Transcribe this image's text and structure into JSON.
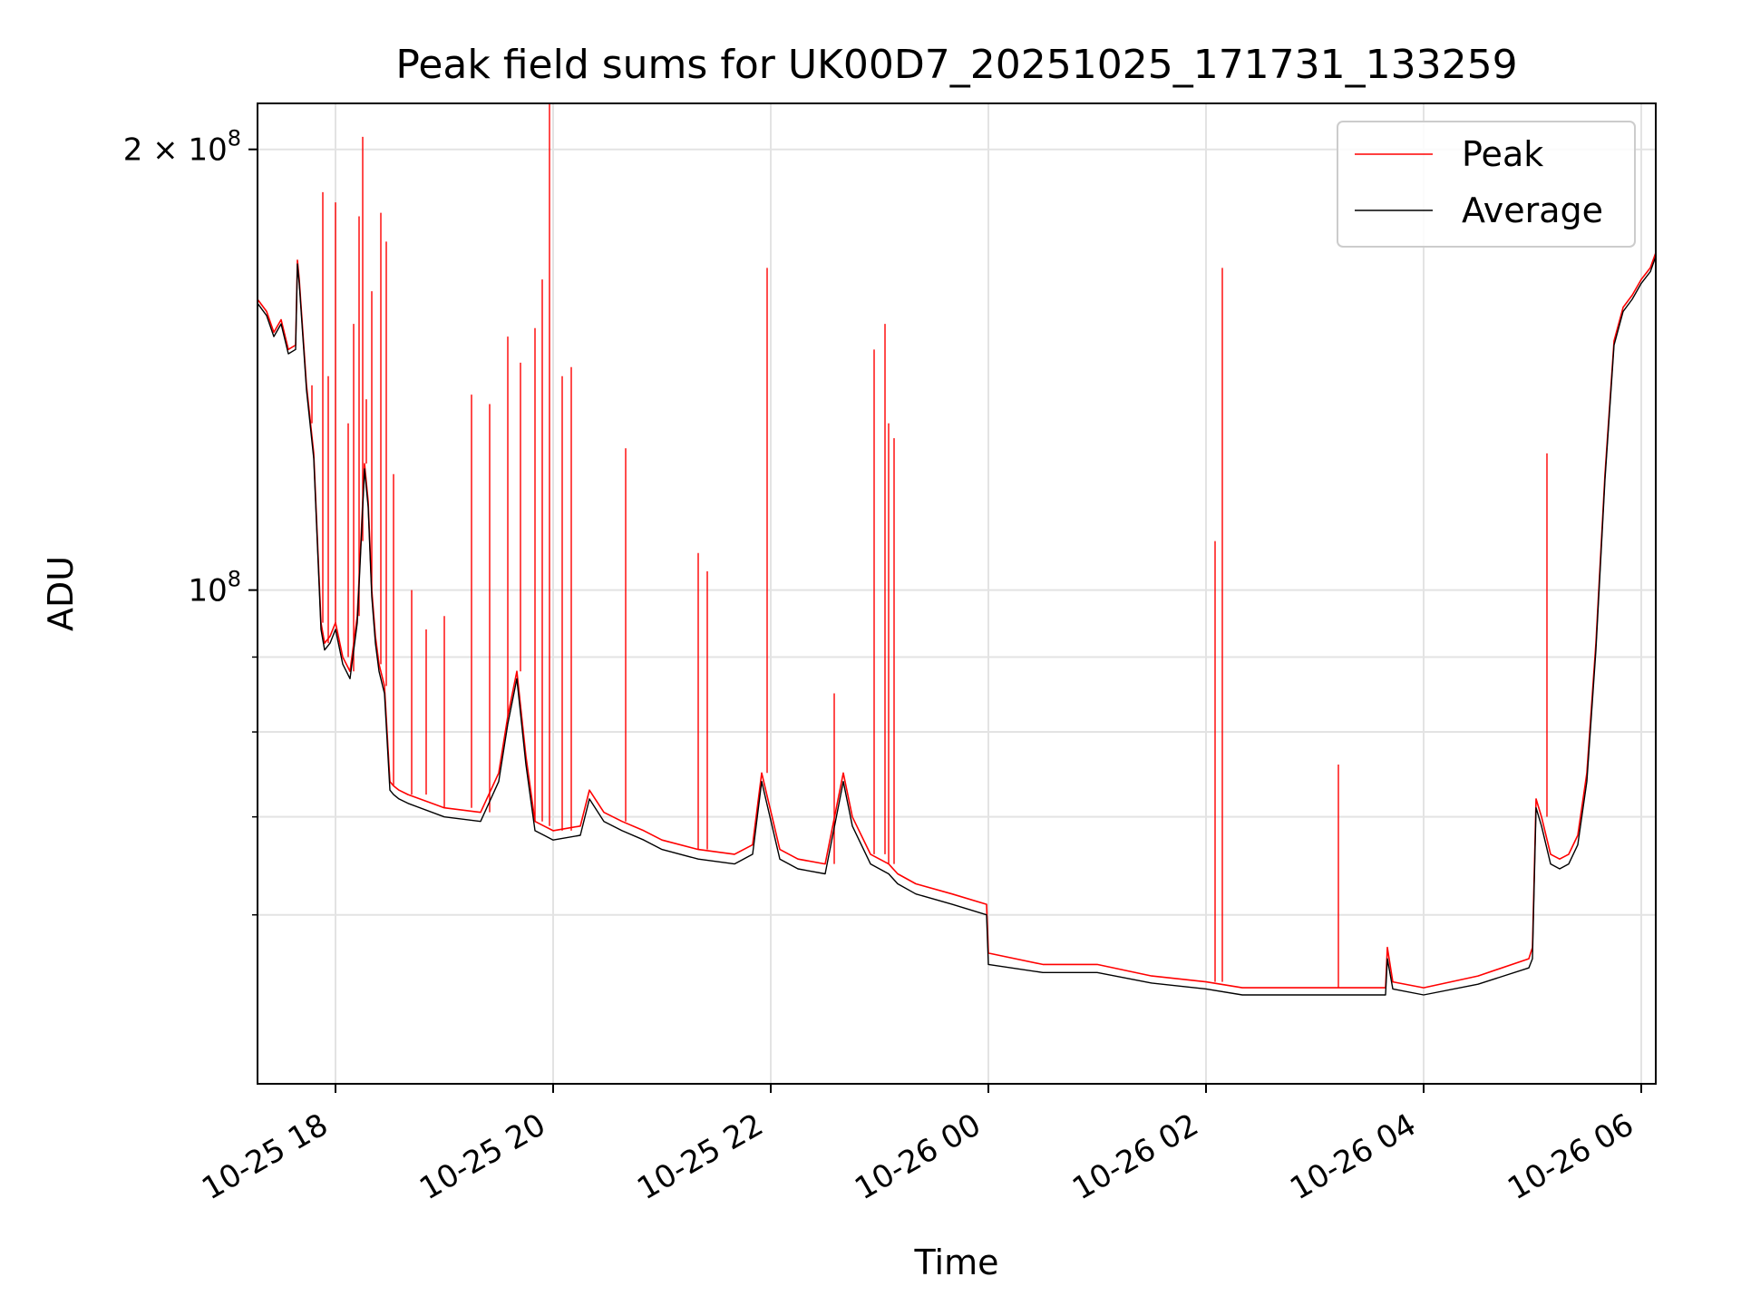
{
  "chart_data": {
    "type": "line",
    "title": "Peak field sums for UK00D7_20251025_171731_133259",
    "xlabel": "Time",
    "ylabel": "ADU",
    "y_scale": "log",
    "ylim": [
      46000000,
      215000000
    ],
    "xlim": [
      "2025-10-25 17:17",
      "2025-10-26 06:08"
    ],
    "grid": true,
    "legend_position": "top-right",
    "x_ticks": [
      {
        "t": "2025-10-25 18:00",
        "label": "10-25 18"
      },
      {
        "t": "2025-10-25 20:00",
        "label": "10-25 20"
      },
      {
        "t": "2025-10-25 22:00",
        "label": "10-25 22"
      },
      {
        "t": "2025-10-26 00:00",
        "label": "10-26 00"
      },
      {
        "t": "2025-10-26 02:00",
        "label": "10-26 02"
      },
      {
        "t": "2025-10-26 04:00",
        "label": "10-26 04"
      },
      {
        "t": "2025-10-26 06:00",
        "label": "10-26 06"
      }
    ],
    "y_major_ticks": [
      {
        "v": 100000000,
        "base": "10",
        "exp": "8",
        "coef": ""
      },
      {
        "v": 200000000,
        "base": "10",
        "exp": "8",
        "coef": "2 × "
      }
    ],
    "y_minor_ticks": [
      60000000,
      70000000,
      80000000,
      90000000
    ],
    "series": [
      {
        "name": "Peak",
        "color": "#ff0000",
        "x": [
          "2025-10-25 17:17",
          "2025-10-25 17:22",
          "2025-10-25 17:26",
          "2025-10-25 17:30",
          "2025-10-25 17:34",
          "2025-10-25 17:38",
          "2025-10-25 17:39",
          "2025-10-25 17:40",
          "2025-10-25 17:44",
          "2025-10-25 17:48",
          "2025-10-25 17:52",
          "2025-10-25 17:54",
          "2025-10-25 17:57",
          "2025-10-25 18:00",
          "2025-10-25 18:04",
          "2025-10-25 18:08",
          "2025-10-25 18:12",
          "2025-10-25 18:14",
          "2025-10-25 18:16",
          "2025-10-25 18:18",
          "2025-10-25 18:20",
          "2025-10-25 18:22",
          "2025-10-25 18:24",
          "2025-10-25 18:27",
          "2025-10-25 18:30",
          "2025-10-25 18:32",
          "2025-10-25 18:35",
          "2025-10-25 18:40",
          "2025-10-25 19:00",
          "2025-10-25 19:20",
          "2025-10-25 19:30",
          "2025-10-25 19:35",
          "2025-10-25 19:40",
          "2025-10-25 19:45",
          "2025-10-25 19:50",
          "2025-10-25 19:55",
          "2025-10-25 20:00",
          "2025-10-25 20:15",
          "2025-10-25 20:20",
          "2025-10-25 20:28",
          "2025-10-25 20:38",
          "2025-10-25 20:50",
          "2025-10-25 21:00",
          "2025-10-25 21:20",
          "2025-10-25 21:40",
          "2025-10-25 21:50",
          "2025-10-25 21:55",
          "2025-10-25 22:05",
          "2025-10-25 22:15",
          "2025-10-25 22:30",
          "2025-10-25 22:40",
          "2025-10-25 22:45",
          "2025-10-25 22:55",
          "2025-10-25 23:05",
          "2025-10-25 23:10",
          "2025-10-25 23:20",
          "2025-10-25 23:40",
          "2025-10-25 23:59",
          "2025-10-26 00:00",
          "2025-10-26 00:30",
          "2025-10-26 01:00",
          "2025-10-26 01:30",
          "2025-10-26 02:00",
          "2025-10-26 02:20",
          "2025-10-26 03:00",
          "2025-10-26 03:30",
          "2025-10-26 03:39",
          "2025-10-26 03:40",
          "2025-10-26 03:43",
          "2025-10-26 04:00",
          "2025-10-26 04:30",
          "2025-10-26 04:58",
          "2025-10-26 05:00",
          "2025-10-26 05:02",
          "2025-10-26 05:05",
          "2025-10-26 05:10",
          "2025-10-26 05:15",
          "2025-10-26 05:20",
          "2025-10-26 05:25",
          "2025-10-26 05:30",
          "2025-10-26 05:35",
          "2025-10-26 05:40",
          "2025-10-26 05:45",
          "2025-10-26 05:50",
          "2025-10-26 05:55",
          "2025-10-26 06:00",
          "2025-10-26 06:05",
          "2025-10-26 06:08"
        ],
        "values": [
          158000000,
          155000000,
          150000000,
          153000000,
          146000000,
          147000000,
          168000000,
          163000000,
          138000000,
          124000000,
          95000000,
          92000000,
          93000000,
          95000000,
          90000000,
          88000000,
          96000000,
          108000000,
          122000000,
          115000000,
          100000000,
          93000000,
          89000000,
          86000000,
          74000000,
          73500000,
          73000000,
          72500000,
          71000000,
          70500000,
          75000000,
          82000000,
          88000000,
          77000000,
          69500000,
          69000000,
          68500000,
          69000000,
          73000000,
          70500000,
          69500000,
          68500000,
          67500000,
          66500000,
          66000000,
          67000000,
          75000000,
          66500000,
          65500000,
          65000000,
          75000000,
          70000000,
          66000000,
          65000000,
          64000000,
          63000000,
          62000000,
          61000000,
          56500000,
          55500000,
          55500000,
          54500000,
          54000000,
          53500000,
          53500000,
          53500000,
          53500000,
          57000000,
          54000000,
          53500000,
          54500000,
          56000000,
          57000000,
          72000000,
          70000000,
          66000000,
          65500000,
          66000000,
          68000000,
          75000000,
          92000000,
          120000000,
          148000000,
          156000000,
          159000000,
          163000000,
          166000000,
          170000000
        ]
      },
      {
        "name": "Average",
        "color": "#000000",
        "x": [
          "2025-10-25 17:17",
          "2025-10-25 17:22",
          "2025-10-25 17:26",
          "2025-10-25 17:30",
          "2025-10-25 17:34",
          "2025-10-25 17:38",
          "2025-10-25 17:39",
          "2025-10-25 17:40",
          "2025-10-25 17:44",
          "2025-10-25 17:48",
          "2025-10-25 17:52",
          "2025-10-25 17:54",
          "2025-10-25 17:57",
          "2025-10-25 18:00",
          "2025-10-25 18:04",
          "2025-10-25 18:08",
          "2025-10-25 18:12",
          "2025-10-25 18:14",
          "2025-10-25 18:16",
          "2025-10-25 18:18",
          "2025-10-25 18:20",
          "2025-10-25 18:22",
          "2025-10-25 18:24",
          "2025-10-25 18:27",
          "2025-10-25 18:30",
          "2025-10-25 18:32",
          "2025-10-25 18:35",
          "2025-10-25 18:40",
          "2025-10-25 19:00",
          "2025-10-25 19:20",
          "2025-10-25 19:30",
          "2025-10-25 19:35",
          "2025-10-25 19:40",
          "2025-10-25 19:45",
          "2025-10-25 19:50",
          "2025-10-25 19:55",
          "2025-10-25 20:00",
          "2025-10-25 20:15",
          "2025-10-25 20:20",
          "2025-10-25 20:28",
          "2025-10-25 20:38",
          "2025-10-25 20:50",
          "2025-10-25 21:00",
          "2025-10-25 21:20",
          "2025-10-25 21:40",
          "2025-10-25 21:50",
          "2025-10-25 21:55",
          "2025-10-25 22:05",
          "2025-10-25 22:15",
          "2025-10-25 22:30",
          "2025-10-25 22:40",
          "2025-10-25 22:45",
          "2025-10-25 22:55",
          "2025-10-25 23:05",
          "2025-10-25 23:10",
          "2025-10-25 23:20",
          "2025-10-25 23:40",
          "2025-10-25 23:59",
          "2025-10-26 00:00",
          "2025-10-26 00:30",
          "2025-10-26 01:00",
          "2025-10-26 01:30",
          "2025-10-26 02:00",
          "2025-10-26 02:20",
          "2025-10-26 03:00",
          "2025-10-26 03:30",
          "2025-10-26 03:39",
          "2025-10-26 03:40",
          "2025-10-26 03:43",
          "2025-10-26 04:00",
          "2025-10-26 04:30",
          "2025-10-26 04:58",
          "2025-10-26 05:00",
          "2025-10-26 05:02",
          "2025-10-26 05:05",
          "2025-10-26 05:10",
          "2025-10-26 05:15",
          "2025-10-26 05:20",
          "2025-10-26 05:25",
          "2025-10-26 05:30",
          "2025-10-26 05:35",
          "2025-10-26 05:40",
          "2025-10-26 05:45",
          "2025-10-26 05:50",
          "2025-10-26 05:55",
          "2025-10-26 06:00",
          "2025-10-26 06:05",
          "2025-10-26 06:08"
        ],
        "values": [
          157000000,
          154000000,
          149000000,
          152000000,
          145000000,
          146000000,
          167000000,
          162000000,
          137000000,
          123000000,
          94000000,
          91000000,
          92000000,
          94000000,
          89000000,
          87000000,
          95000000,
          107000000,
          121000000,
          114000000,
          99000000,
          92000000,
          88000000,
          85000000,
          73000000,
          72500000,
          72000000,
          71500000,
          70000000,
          69500000,
          74000000,
          81000000,
          87000000,
          76000000,
          68500000,
          68000000,
          67500000,
          68000000,
          72000000,
          69500000,
          68500000,
          67500000,
          66500000,
          65500000,
          65000000,
          66000000,
          74000000,
          65500000,
          64500000,
          64000000,
          74000000,
          69000000,
          65000000,
          64000000,
          63000000,
          62000000,
          61000000,
          60000000,
          55500000,
          54800000,
          54800000,
          53900000,
          53400000,
          52900000,
          52900000,
          52900000,
          52900000,
          56000000,
          53400000,
          52900000,
          53800000,
          55200000,
          56000000,
          71000000,
          69000000,
          65000000,
          64500000,
          65000000,
          67000000,
          74000000,
          91000000,
          119000000,
          147000000,
          155000000,
          158000000,
          162000000,
          165000000,
          169000000
        ]
      }
    ],
    "peak_spikes": [
      {
        "x": "2025-10-25 17:39",
        "v": 168000000
      },
      {
        "x": "2025-10-25 17:47",
        "v": 130000000
      },
      {
        "x": "2025-10-25 17:53",
        "v": 187000000
      },
      {
        "x": "2025-10-25 17:56",
        "v": 140000000
      },
      {
        "x": "2025-10-25 18:00",
        "v": 184000000
      },
      {
        "x": "2025-10-25 18:07",
        "v": 130000000
      },
      {
        "x": "2025-10-25 18:10",
        "v": 152000000
      },
      {
        "x": "2025-10-25 18:13",
        "v": 180000000
      },
      {
        "x": "2025-10-25 18:15",
        "v": 204000000
      },
      {
        "x": "2025-10-25 18:17",
        "v": 135000000
      },
      {
        "x": "2025-10-25 18:20",
        "v": 160000000
      },
      {
        "x": "2025-10-25 18:25",
        "v": 181000000
      },
      {
        "x": "2025-10-25 18:28",
        "v": 173000000
      },
      {
        "x": "2025-10-25 18:32",
        "v": 120000000
      },
      {
        "x": "2025-10-25 18:42",
        "v": 100000000
      },
      {
        "x": "2025-10-25 18:50",
        "v": 94000000
      },
      {
        "x": "2025-10-25 19:00",
        "v": 96000000
      },
      {
        "x": "2025-10-25 19:15",
        "v": 136000000
      },
      {
        "x": "2025-10-25 19:25",
        "v": 134000000
      },
      {
        "x": "2025-10-25 19:35",
        "v": 149000000
      },
      {
        "x": "2025-10-25 19:42",
        "v": 143000000
      },
      {
        "x": "2025-10-25 19:50",
        "v": 151000000
      },
      {
        "x": "2025-10-25 19:54",
        "v": 163000000
      },
      {
        "x": "2025-10-25 19:58",
        "v": 215000000
      },
      {
        "x": "2025-10-25 20:05",
        "v": 140000000
      },
      {
        "x": "2025-10-25 20:10",
        "v": 142000000
      },
      {
        "x": "2025-10-25 20:40",
        "v": 125000000
      },
      {
        "x": "2025-10-25 21:20",
        "v": 106000000
      },
      {
        "x": "2025-10-25 21:25",
        "v": 103000000
      },
      {
        "x": "2025-10-25 21:58",
        "v": 166000000
      },
      {
        "x": "2025-10-25 22:35",
        "v": 85000000
      },
      {
        "x": "2025-10-25 22:57",
        "v": 146000000
      },
      {
        "x": "2025-10-25 23:03",
        "v": 152000000
      },
      {
        "x": "2025-10-25 23:05",
        "v": 130000000
      },
      {
        "x": "2025-10-25 23:08",
        "v": 127000000
      },
      {
        "x": "2025-10-26 02:05",
        "v": 108000000
      },
      {
        "x": "2025-10-26 02:09",
        "v": 166000000
      },
      {
        "x": "2025-10-26 03:13",
        "v": 76000000
      },
      {
        "x": "2025-10-26 05:08",
        "v": 124000000
      }
    ]
  }
}
